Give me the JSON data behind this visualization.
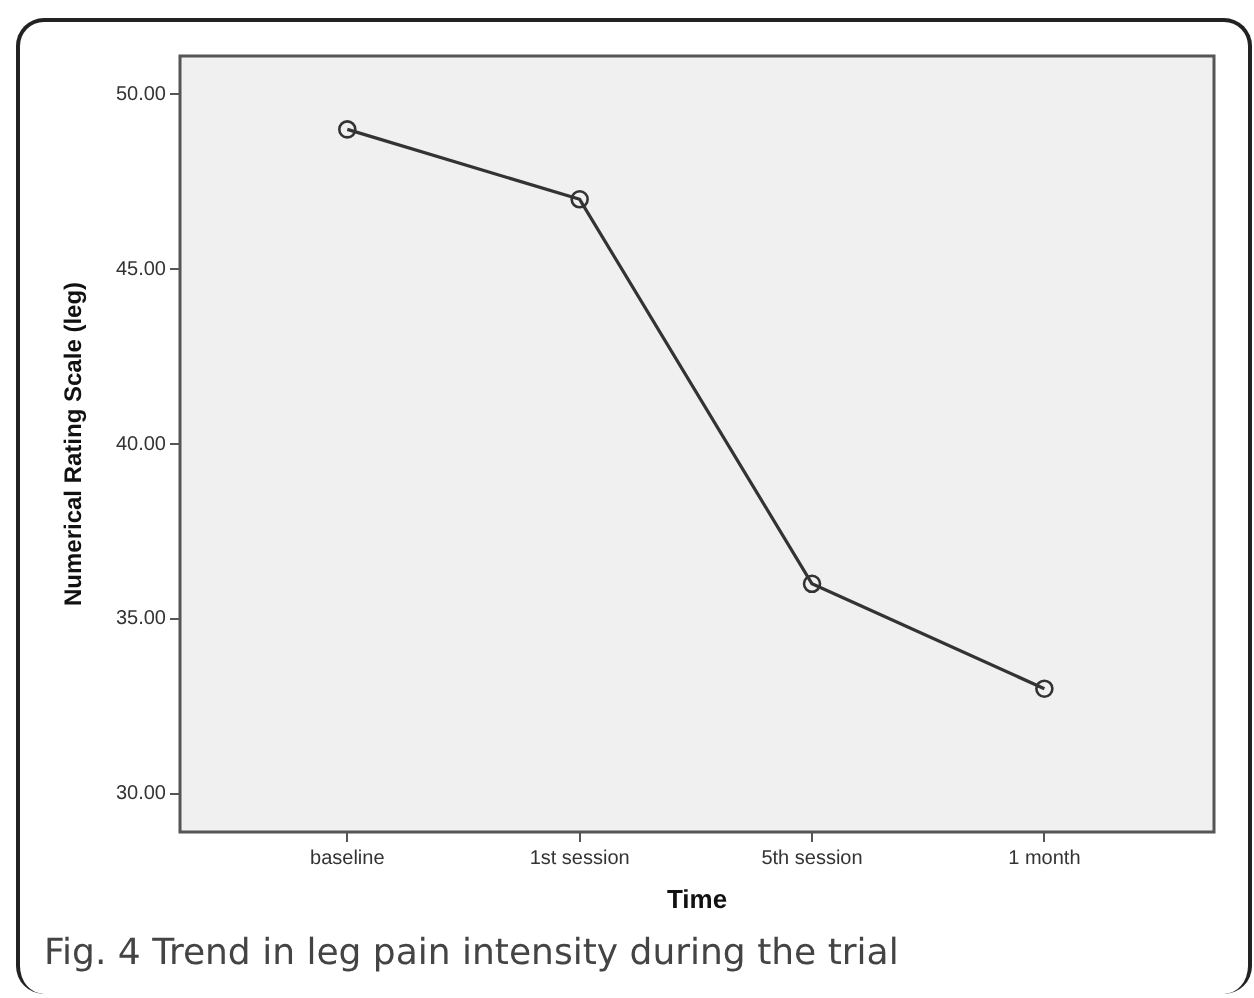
{
  "chart_data": {
    "type": "line",
    "xlabel": "Time",
    "ylabel": "Numerical Rating Scale (leg)",
    "categories": [
      "baseline",
      "1st session",
      "5th session",
      "1 month"
    ],
    "series": [
      {
        "color": "#333333",
        "values": [
          49.0,
          47.0,
          36.0,
          33.0
        ]
      }
    ],
    "ylim": [
      28.9,
      51.1
    ],
    "yticks": [
      {
        "value": 30,
        "label": "30.00"
      },
      {
        "value": 35,
        "label": "35.00"
      },
      {
        "value": 40,
        "label": "40.00"
      },
      {
        "value": 45,
        "label": "45.00"
      },
      {
        "value": 50,
        "label": "50.00"
      }
    ],
    "grid": false,
    "legend": false,
    "marker": "circle",
    "line_style": "solid",
    "annotations": [
      "Fig. 4 Trend in leg pain intensity during the trial"
    ]
  }
}
